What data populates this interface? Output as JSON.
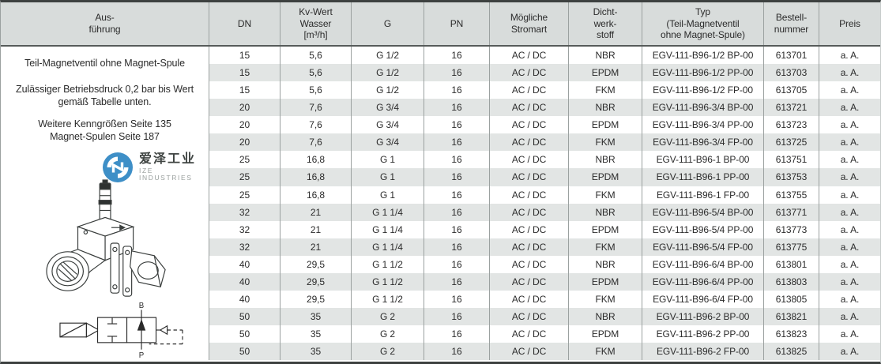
{
  "colors": {
    "header_bg": "#d8dcdb",
    "row_bg": "#ffffff",
    "row_alt_bg": "#e2e5e4",
    "outer_border": "#3d4140",
    "grid_line": "#9ba1a0",
    "text": "#2b2b2b",
    "logo_blue": "#3e8fc7",
    "logo_text_gray": "#999f9d"
  },
  "table": {
    "header": {
      "ausfuehrung": "Aus-\nführung",
      "dn": "DN",
      "kv": "Kv-Wert\nWasser\n[m³/h]",
      "g": "G",
      "pn": "PN",
      "stromart": "Mögliche\nStromart",
      "dichtwerkstoff": "Dicht-\nwerk-\nstoff",
      "typ": "Typ\n(Teil-Magnetventil\nohne Magnet-Spule)",
      "bestellnummer": "Bestell-\nnummer",
      "preis": "Preis"
    },
    "column_keys": [
      "dn",
      "kv",
      "g",
      "pn",
      "stromart",
      "dichtwerkstoff",
      "typ",
      "bestellnummer",
      "preis"
    ],
    "rows": [
      [
        "15",
        "5,6",
        "G 1/2",
        "16",
        "AC / DC",
        "NBR",
        "EGV-111-B96-1/2 BP-00",
        "613701",
        "a. A."
      ],
      [
        "15",
        "5,6",
        "G 1/2",
        "16",
        "AC / DC",
        "EPDM",
        "EGV-111-B96-1/2 PP-00",
        "613703",
        "a. A."
      ],
      [
        "15",
        "5,6",
        "G 1/2",
        "16",
        "AC / DC",
        "FKM",
        "EGV-111-B96-1/2 FP-00",
        "613705",
        "a. A."
      ],
      [
        "20",
        "7,6",
        "G 3/4",
        "16",
        "AC / DC",
        "NBR",
        "EGV-111-B96-3/4 BP-00",
        "613721",
        "a. A."
      ],
      [
        "20",
        "7,6",
        "G 3/4",
        "16",
        "AC / DC",
        "EPDM",
        "EGV-111-B96-3/4 PP-00",
        "613723",
        "a. A."
      ],
      [
        "20",
        "7,6",
        "G 3/4",
        "16",
        "AC / DC",
        "FKM",
        "EGV-111-B96-3/4 FP-00",
        "613725",
        "a. A."
      ],
      [
        "25",
        "16,8",
        "G 1",
        "16",
        "AC / DC",
        "NBR",
        "EGV-111-B96-1 BP-00",
        "613751",
        "a. A."
      ],
      [
        "25",
        "16,8",
        "G 1",
        "16",
        "AC / DC",
        "EPDM",
        "EGV-111-B96-1 PP-00",
        "613753",
        "a. A."
      ],
      [
        "25",
        "16,8",
        "G 1",
        "16",
        "AC / DC",
        "FKM",
        "EGV-111-B96-1 FP-00",
        "613755",
        "a. A."
      ],
      [
        "32",
        "21",
        "G 1 1/4",
        "16",
        "AC / DC",
        "NBR",
        "EGV-111-B96-5/4 BP-00",
        "613771",
        "a. A."
      ],
      [
        "32",
        "21",
        "G 1 1/4",
        "16",
        "AC / DC",
        "EPDM",
        "EGV-111-B96-5/4 PP-00",
        "613773",
        "a. A."
      ],
      [
        "32",
        "21",
        "G 1 1/4",
        "16",
        "AC / DC",
        "FKM",
        "EGV-111-B96-5/4 FP-00",
        "613775",
        "a. A."
      ],
      [
        "40",
        "29,5",
        "G 1 1/2",
        "16",
        "AC / DC",
        "NBR",
        "EGV-111-B96-6/4 BP-00",
        "613801",
        "a. A."
      ],
      [
        "40",
        "29,5",
        "G 1 1/2",
        "16",
        "AC / DC",
        "EPDM",
        "EGV-111-B96-6/4 PP-00",
        "613803",
        "a. A."
      ],
      [
        "40",
        "29,5",
        "G 1 1/2",
        "16",
        "AC / DC",
        "FKM",
        "EGV-111-B96-6/4 FP-00",
        "613805",
        "a. A."
      ],
      [
        "50",
        "35",
        "G 2",
        "16",
        "AC / DC",
        "NBR",
        "EGV-111-B96-2 BP-00",
        "613821",
        "a. A."
      ],
      [
        "50",
        "35",
        "G 2",
        "16",
        "AC / DC",
        "EPDM",
        "EGV-111-B96-2 PP-00",
        "613823",
        "a. A."
      ],
      [
        "50",
        "35",
        "G 2",
        "16",
        "AC / DC",
        "FKM",
        "EGV-111-B96-2 FP-00",
        "613825",
        "a. A."
      ]
    ]
  },
  "sidebar": {
    "line1": "Teil-Magnetventil ohne Magnet-Spule",
    "line2": "Zulässiger Betriebsdruck 0,2 bar bis Wert\ngemäß Tabelle unten.",
    "line3": "Weitere Kenngrößen Seite 135\nMagnet-Spulen Seite 187",
    "logo": {
      "name_cn": "爱泽工业",
      "name_en": "IZE INDUSTRIES"
    },
    "schematic": {
      "port_top": "B",
      "port_bottom": "P"
    }
  }
}
